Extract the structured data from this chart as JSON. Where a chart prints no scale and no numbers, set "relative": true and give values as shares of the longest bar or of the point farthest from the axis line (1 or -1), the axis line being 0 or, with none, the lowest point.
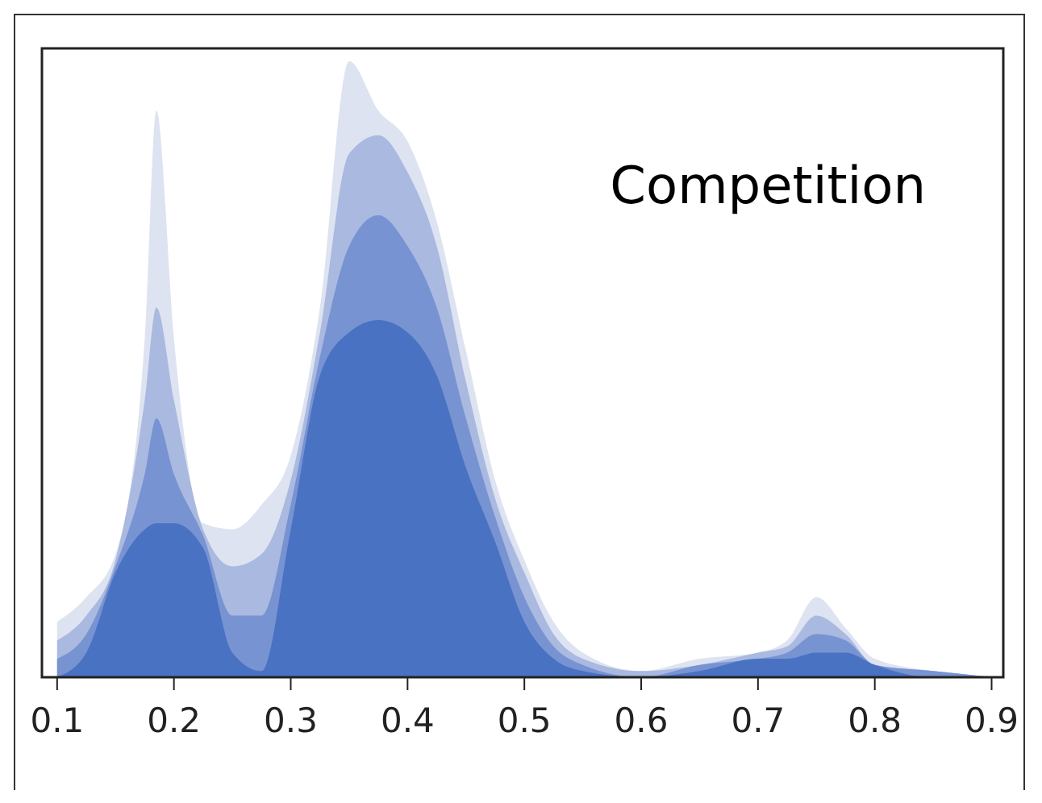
{
  "chart_data": {
    "type": "area",
    "title": "Competition",
    "relative": true,
    "x": [
      0.1,
      0.125,
      0.15,
      0.175,
      0.185,
      0.2,
      0.225,
      0.25,
      0.275,
      0.3,
      0.325,
      0.35,
      0.375,
      0.4,
      0.425,
      0.45,
      0.475,
      0.5,
      0.525,
      0.55,
      0.6,
      0.65,
      0.7,
      0.725,
      0.75,
      0.775,
      0.8,
      0.85,
      0.9
    ],
    "xlim": [
      0.087,
      0.91
    ],
    "xticks": [
      0.1,
      0.2,
      0.3,
      0.4,
      0.5,
      0.6,
      0.7,
      0.8,
      0.9
    ],
    "grid": false,
    "series": [
      {
        "color": "#dde3f0",
        "values": [
          0.09,
          0.13,
          0.2,
          0.55,
          0.92,
          0.55,
          0.25,
          0.24,
          0.28,
          0.36,
          0.6,
          1.0,
          0.92,
          0.87,
          0.74,
          0.53,
          0.32,
          0.19,
          0.09,
          0.04,
          0.01,
          0.03,
          0.04,
          0.06,
          0.13,
          0.08,
          0.03,
          0.01,
          0
        ]
      },
      {
        "color": "#a9b9e0",
        "values": [
          0.06,
          0.1,
          0.19,
          0.45,
          0.6,
          0.45,
          0.24,
          0.18,
          0.2,
          0.32,
          0.56,
          0.85,
          0.88,
          0.82,
          0.7,
          0.48,
          0.29,
          0.17,
          0.07,
          0.03,
          0.01,
          0.02,
          0.04,
          0.05,
          0.1,
          0.07,
          0.02,
          0.01,
          0
        ]
      },
      {
        "color": "#7893d2",
        "values": [
          0.03,
          0.07,
          0.18,
          0.33,
          0.42,
          0.33,
          0.23,
          0.1,
          0.1,
          0.28,
          0.52,
          0.7,
          0.75,
          0.7,
          0.6,
          0.42,
          0.26,
          0.13,
          0.05,
          0.02,
          0,
          0.02,
          0.03,
          0.04,
          0.07,
          0.06,
          0.02,
          0.01,
          0
        ]
      },
      {
        "color": "#4a72c2",
        "values": [
          0,
          0.04,
          0.17,
          0.24,
          0.25,
          0.25,
          0.21,
          0.04,
          0.01,
          0.24,
          0.49,
          0.56,
          0.58,
          0.56,
          0.49,
          0.34,
          0.22,
          0.09,
          0.03,
          0.01,
          0,
          0.01,
          0.03,
          0.03,
          0.04,
          0.04,
          0.02,
          0,
          0
        ]
      }
    ]
  }
}
